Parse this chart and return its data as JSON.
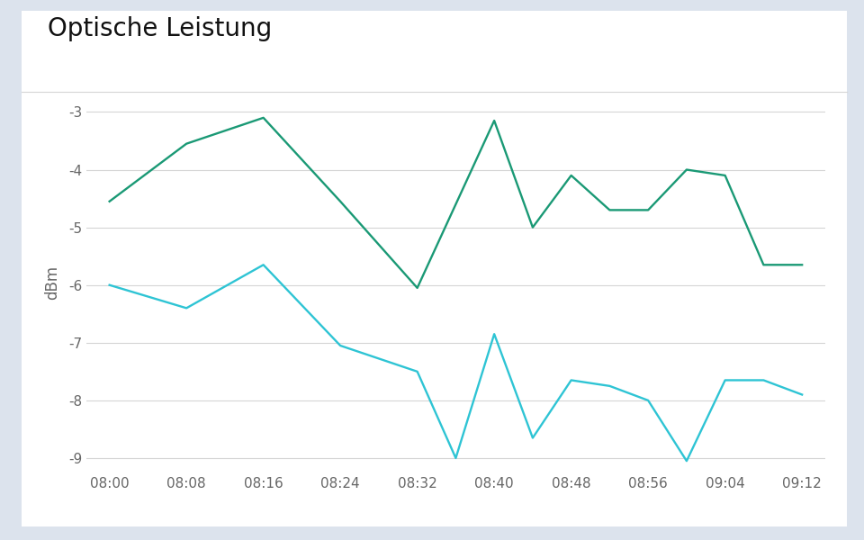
{
  "title": "Optische Leistung",
  "ylabel": "dBm",
  "outer_bg": "#dce3ed",
  "card_bg": "#ffffff",
  "plot_bg": "#ffffff",
  "x_labels": [
    "08:00",
    "08:08",
    "08:16",
    "08:24",
    "08:32",
    "08:40",
    "08:48",
    "08:56",
    "09:04",
    "09:12"
  ],
  "y_green": [
    -4.55,
    -3.55,
    -3.1,
    -4.55,
    -6.05,
    -3.15,
    -5.0,
    -4.1,
    -4.7,
    -4.7,
    -4.0,
    -4.1,
    -5.65,
    -5.65
  ],
  "y_cyan": [
    -6.0,
    -6.4,
    -5.65,
    -7.05,
    -7.5,
    -9.0,
    -6.85,
    -8.65,
    -7.65,
    -7.75,
    -8.0,
    -9.05,
    -7.65,
    -7.65,
    -7.9
  ],
  "green_x": [
    0,
    1,
    2,
    3,
    4,
    5,
    5.5,
    6,
    6.5,
    7,
    7.5,
    8,
    8.5,
    9
  ],
  "cyan_x": [
    0,
    1,
    2,
    3,
    4,
    4.5,
    5,
    5.5,
    6,
    6.5,
    7,
    7.5,
    8,
    8.5,
    9
  ],
  "green_color": "#1a9975",
  "cyan_color": "#2ec4d4",
  "ylim": [
    -9.25,
    -2.65
  ],
  "yticks": [
    -9,
    -8,
    -7,
    -6,
    -5,
    -4,
    -3
  ],
  "xlim": [
    -0.3,
    9.3
  ],
  "grid_color": "#d5d5d5",
  "tick_label_color": "#666666",
  "title_color": "#111111",
  "title_fontsize": 20,
  "axis_label_fontsize": 12,
  "tick_fontsize": 11,
  "linewidth": 1.7
}
